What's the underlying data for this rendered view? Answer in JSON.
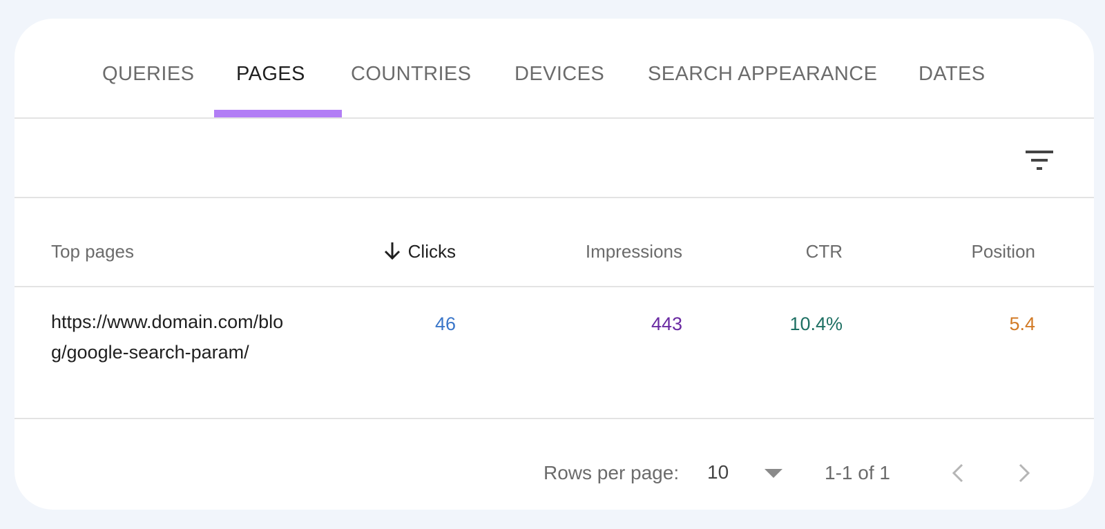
{
  "tabs": [
    {
      "label": "QUERIES"
    },
    {
      "label": "PAGES"
    },
    {
      "label": "COUNTRIES"
    },
    {
      "label": "DEVICES"
    },
    {
      "label": "SEARCH APPEARANCE"
    },
    {
      "label": "DATES"
    }
  ],
  "active_tab": "PAGES",
  "accent_color": "#b27ef5",
  "table": {
    "columns": {
      "page": "Top pages",
      "clicks": "Clicks",
      "impressions": "Impressions",
      "ctr": "CTR",
      "position": "Position"
    },
    "sorted_by": "Clicks",
    "rows": [
      {
        "page": "https://www.domain.com/blog/google-search-param/",
        "clicks": "46",
        "impressions": "443",
        "ctr": "10.4%",
        "position": "5.4"
      }
    ],
    "metric_colors": {
      "clicks": "#3a76c9",
      "impressions": "#6a2aa2",
      "ctr": "#1e7063",
      "position": "#d27a25"
    }
  },
  "footer": {
    "rows_per_page_label": "Rows per page:",
    "rows_per_page_value": "10",
    "range": "1-1 of 1"
  },
  "icons": [
    "filter-icon",
    "arrow-down-icon",
    "dropdown-caret-icon",
    "chevron-left-icon",
    "chevron-right-icon"
  ]
}
